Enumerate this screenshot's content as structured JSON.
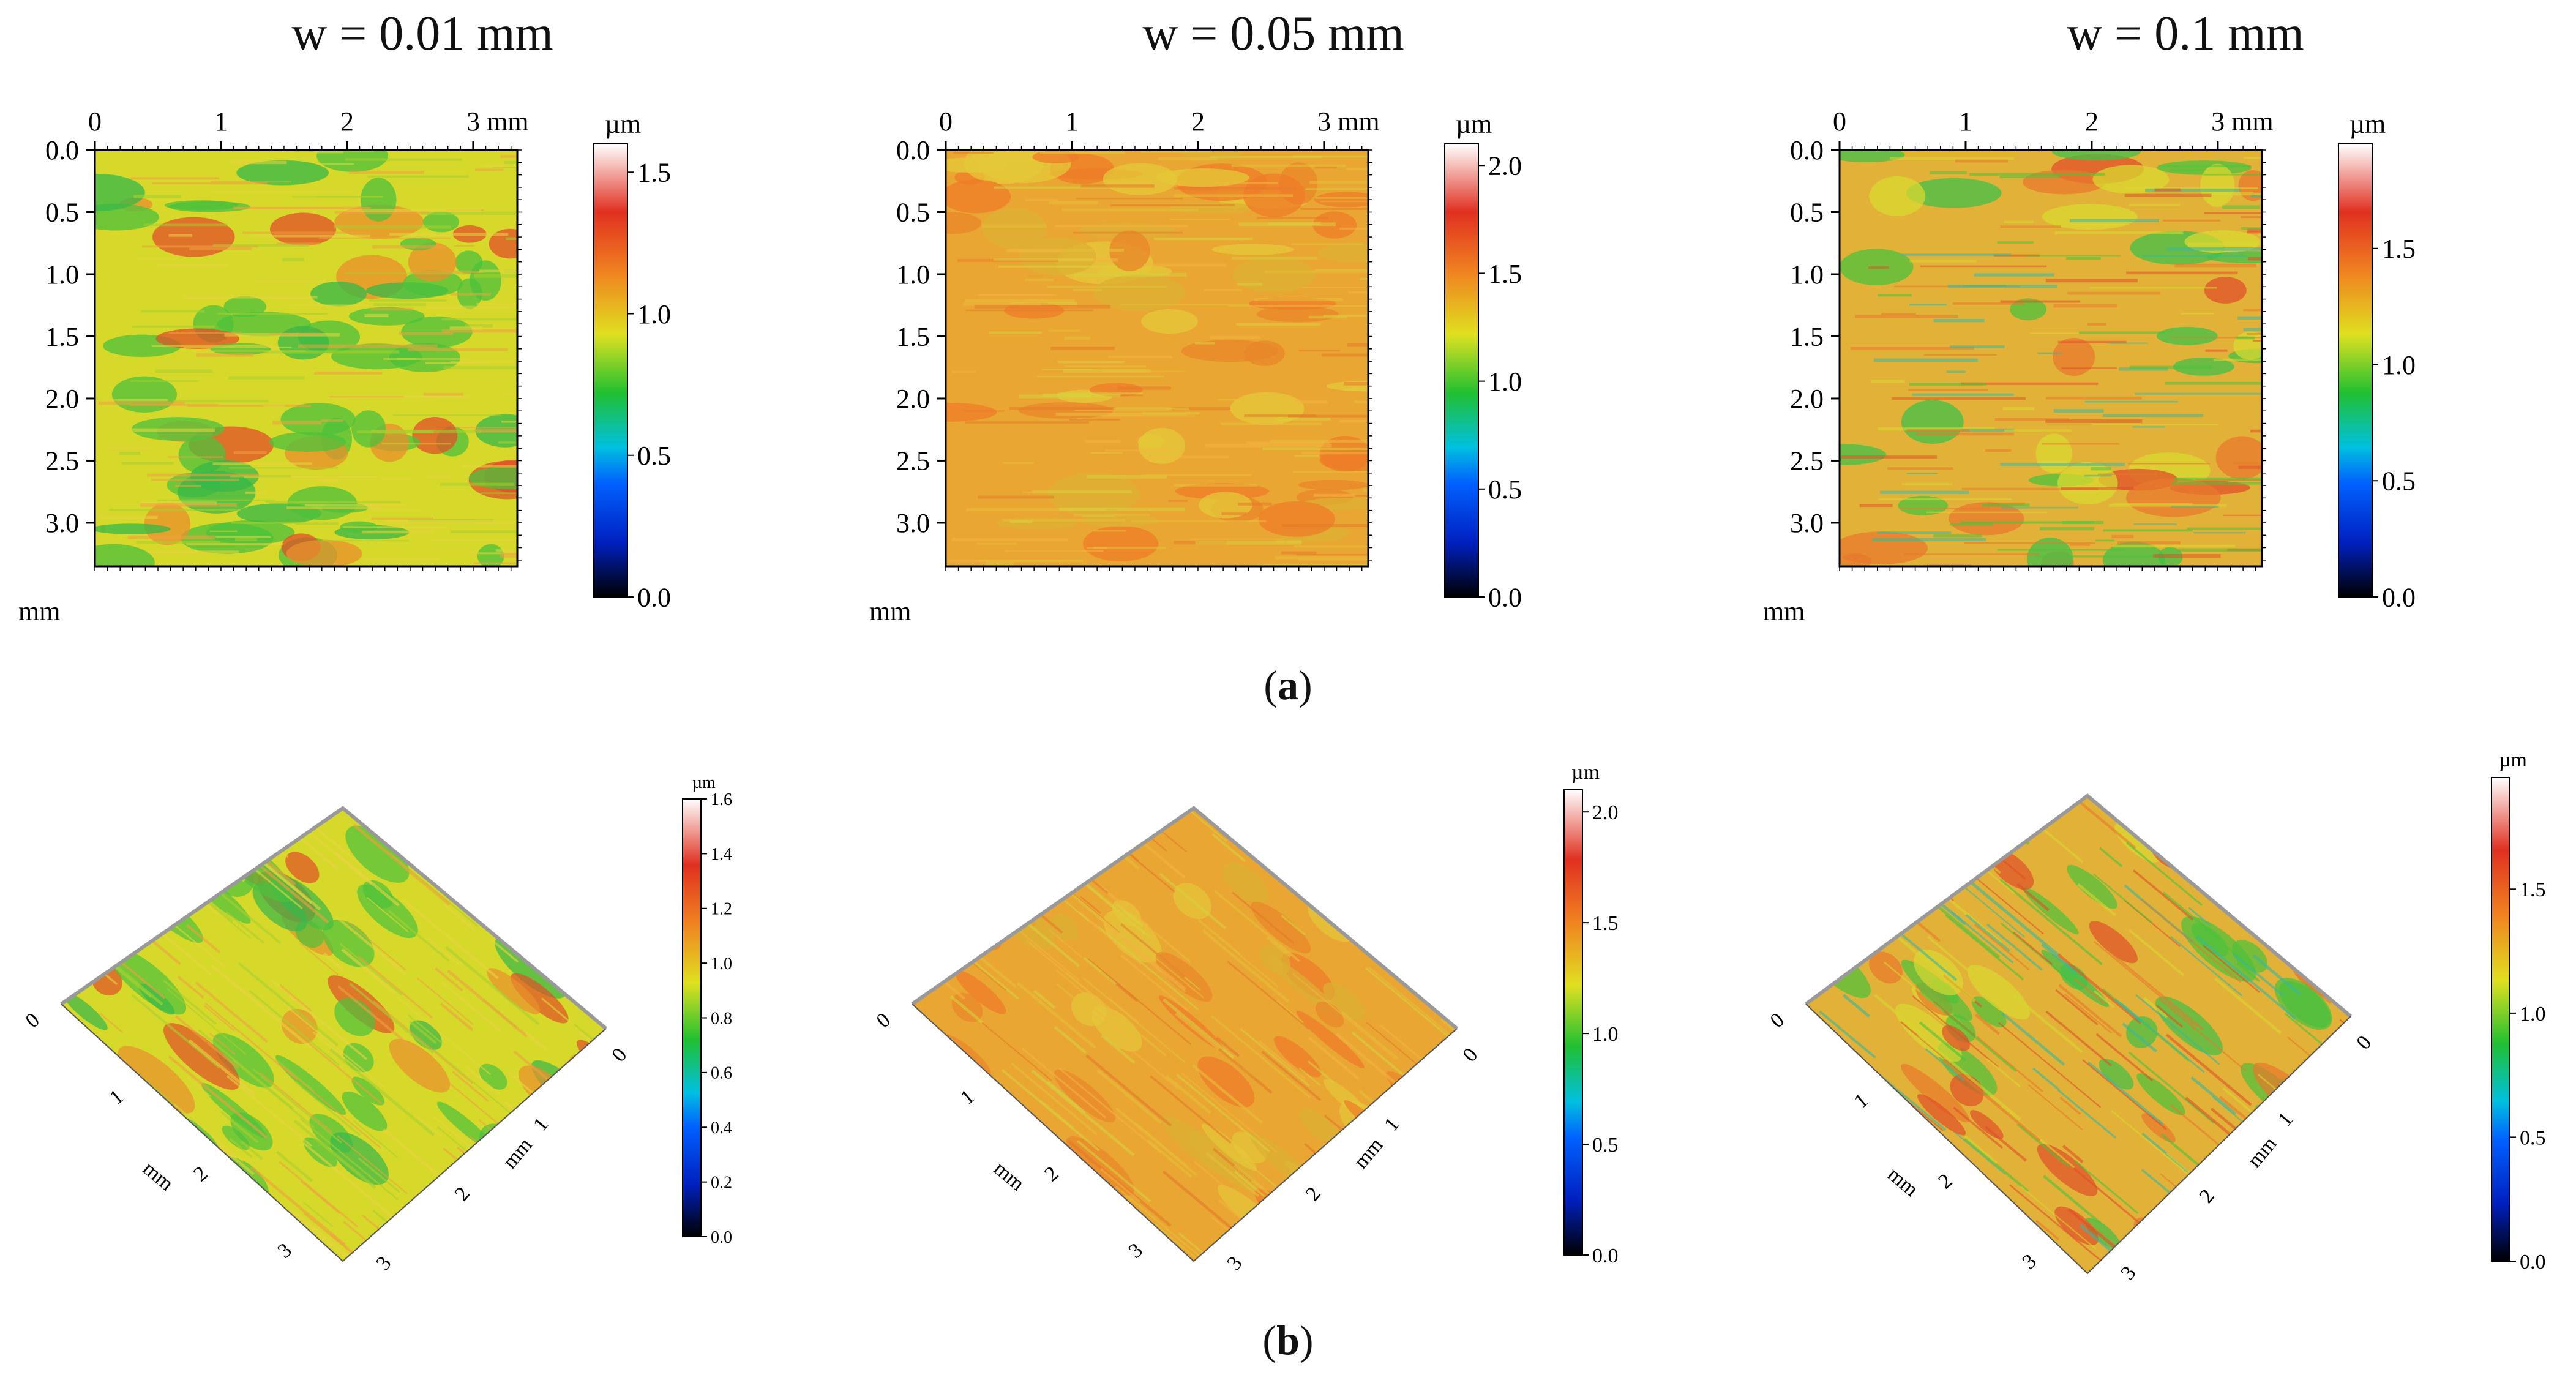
{
  "columns": [
    {
      "title": "w = 0.01 mm",
      "map2d": {
        "x_ticks": [
          "0",
          "1",
          "2",
          "3 mm"
        ],
        "y_ticks": [
          "0.0",
          "0.5",
          "1.0",
          "1.5",
          "2.0",
          "2.5",
          "3.0"
        ],
        "axis_unit": "mm",
        "colorbar_unit": "µm",
        "colorbar_ticks": [
          "1.5",
          "1.0",
          "0.5",
          "0.0"
        ],
        "colorbar_values": [
          1.5,
          1.0,
          0.5,
          0.0
        ],
        "colorbar_max": 1.6,
        "palette": "green",
        "mean_height_um": 0.8
      },
      "view3d": {
        "colorbar_unit": "µm",
        "colorbar_ticks": [
          "1.6",
          "1.4",
          "1.2",
          "1.0",
          "0.8",
          "0.6",
          "0.4",
          "0.2",
          "0.0"
        ],
        "colorbar_values": [
          1.6,
          1.4,
          1.2,
          1.0,
          0.8,
          0.6,
          0.4,
          0.2,
          0.0
        ],
        "colorbar_max": 1.6,
        "left_ticks": [
          "0",
          "1",
          "2",
          "3"
        ],
        "right_ticks": [
          "0",
          "1",
          "2",
          "3"
        ],
        "axis_unit": "mm"
      }
    },
    {
      "title": "w = 0.05 mm",
      "map2d": {
        "x_ticks": [
          "0",
          "1",
          "2",
          "3 mm"
        ],
        "y_ticks": [
          "0.0",
          "0.5",
          "1.0",
          "1.5",
          "2.0",
          "2.5",
          "3.0"
        ],
        "axis_unit": "mm",
        "colorbar_unit": "µm",
        "colorbar_ticks": [
          "2.0",
          "1.5",
          "1.0",
          "0.5",
          "0.0"
        ],
        "colorbar_values": [
          2.0,
          1.5,
          1.0,
          0.5,
          0.0
        ],
        "colorbar_max": 2.1,
        "palette": "orange",
        "mean_height_um": 1.45
      },
      "view3d": {
        "colorbar_unit": "µm",
        "colorbar_ticks": [
          "2.0",
          "1.5",
          "1.0",
          "0.5",
          "0.0"
        ],
        "colorbar_values": [
          2.0,
          1.5,
          1.0,
          0.5,
          0.0
        ],
        "colorbar_max": 2.1,
        "left_ticks": [
          "0",
          "1",
          "2",
          "3"
        ],
        "right_ticks": [
          "0",
          "1",
          "2",
          "3"
        ],
        "axis_unit": "mm"
      }
    },
    {
      "title": "w = 0.1 mm",
      "map2d": {
        "x_ticks": [
          "0",
          "1",
          "2",
          "3 mm"
        ],
        "y_ticks": [
          "0.0",
          "0.5",
          "1.0",
          "1.5",
          "2.0",
          "2.5",
          "3.0"
        ],
        "axis_unit": "mm",
        "colorbar_unit": "µm",
        "colorbar_ticks": [
          "1.5",
          "1.0",
          "0.5",
          "0.0"
        ],
        "colorbar_values": [
          1.5,
          1.0,
          0.5,
          0.0
        ],
        "colorbar_max": 1.95,
        "palette": "mixed",
        "mean_height_um": 1.25
      },
      "view3d": {
        "colorbar_unit": "µm",
        "colorbar_ticks": [
          "1.5",
          "1.0",
          "0.5",
          "0.0"
        ],
        "colorbar_values": [
          1.5,
          1.0,
          0.5,
          0.0
        ],
        "colorbar_max": 1.95,
        "left_ticks": [
          "0",
          "1",
          "2",
          "3"
        ],
        "right_ticks": [
          "0",
          "1",
          "2",
          "3"
        ],
        "axis_unit": "mm"
      }
    }
  ],
  "labels": {
    "a": "a",
    "b": "b",
    "open": "(",
    "close": ")"
  },
  "colors": {
    "green": "#4cc23c",
    "yellow": "#d8d828",
    "orange": "#e8902c",
    "red": "#e0502a",
    "blue": "#1040e0",
    "cyan": "#20c8d8"
  }
}
